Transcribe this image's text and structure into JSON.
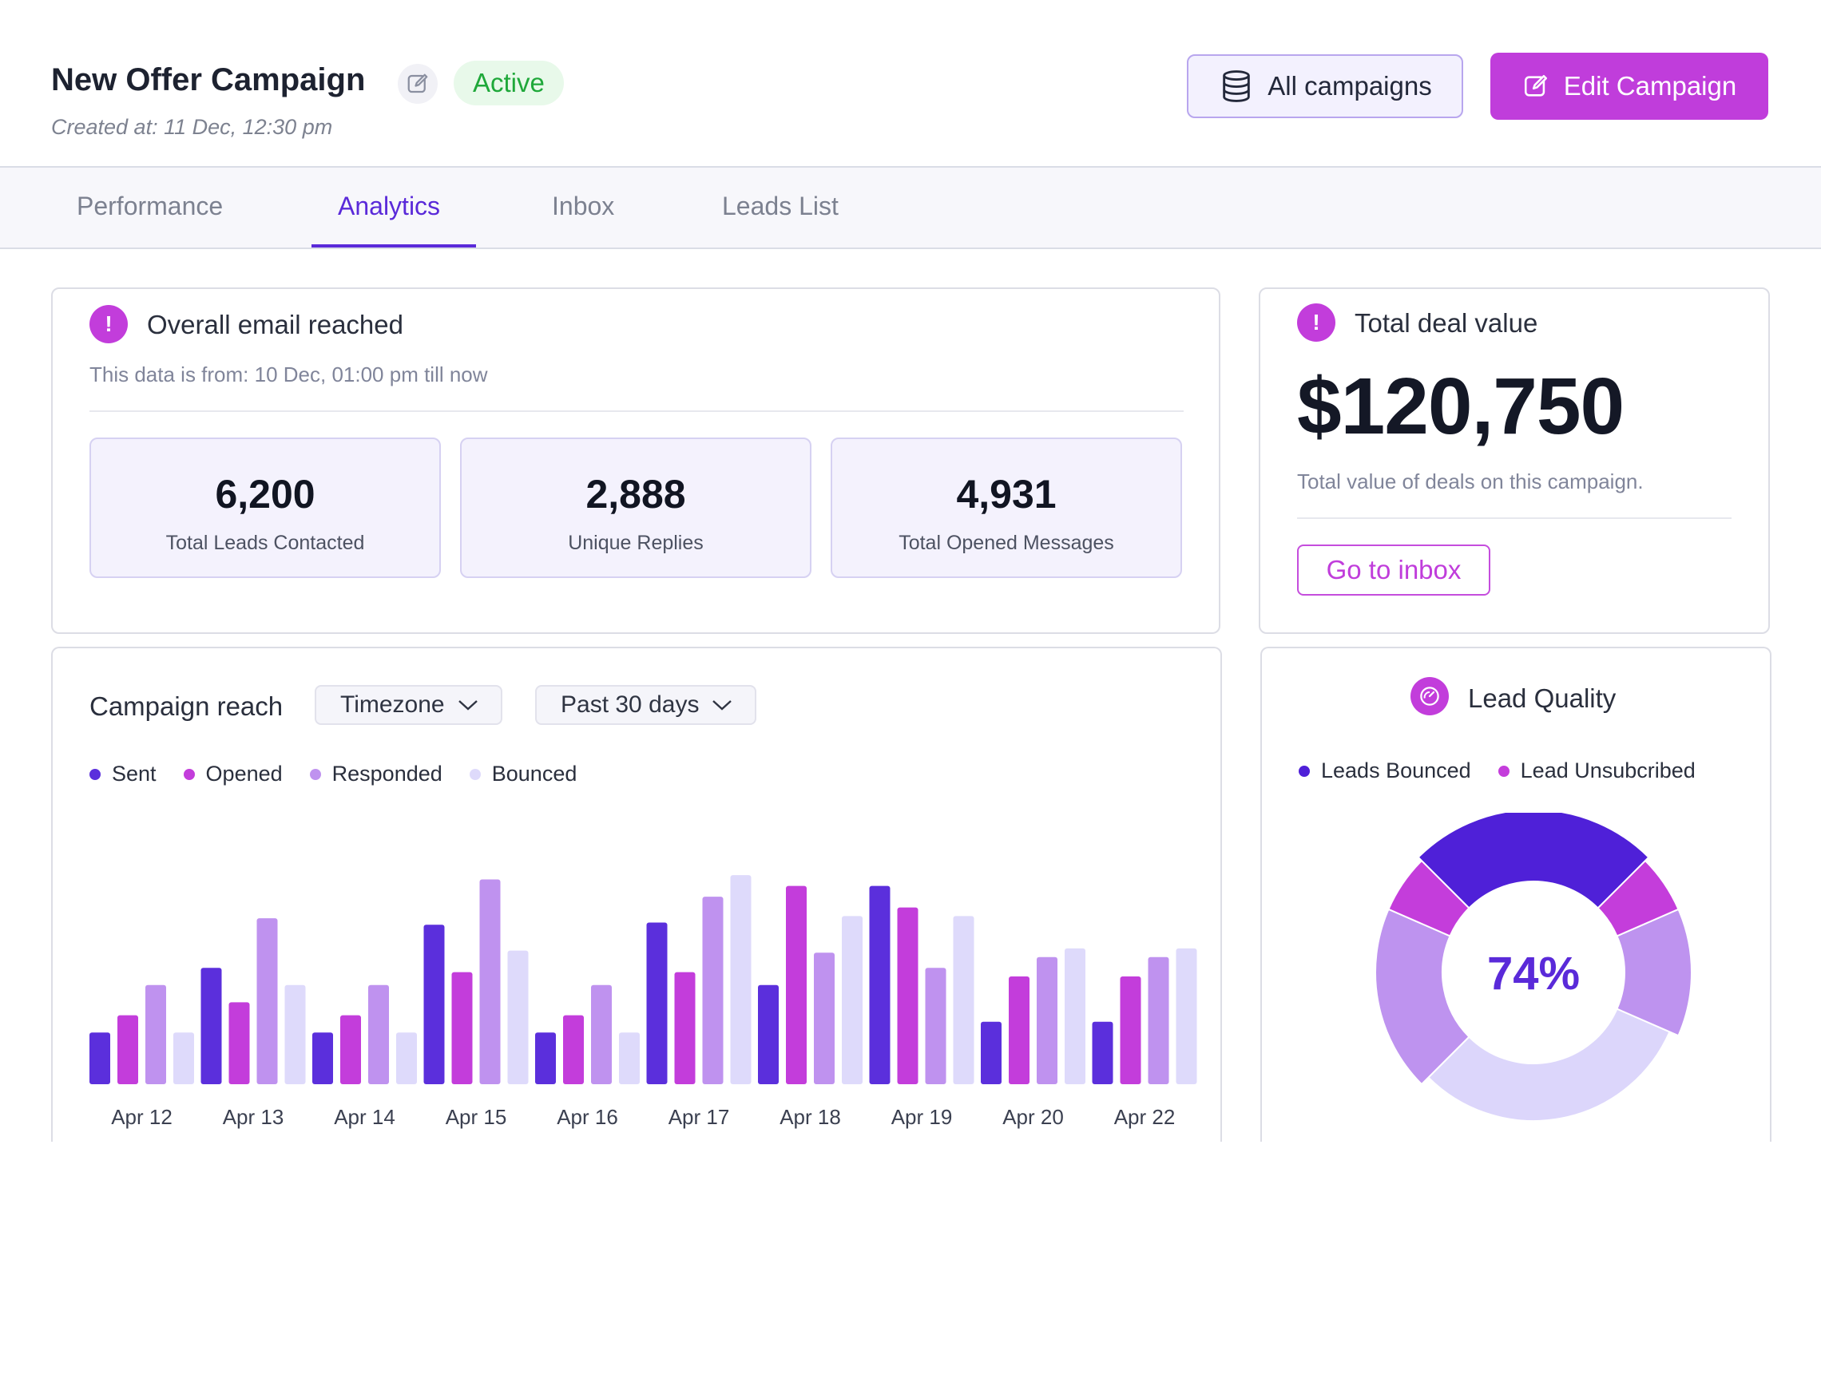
{
  "header": {
    "title": "New Offer Campaign",
    "status": "Active",
    "created": "Created at: 11 Dec, 12:30 pm",
    "all_campaigns_label": "All campaigns",
    "edit_campaign_label": "Edit Campaign"
  },
  "tabs": [
    {
      "label": "Performance",
      "active": false
    },
    {
      "label": "Analytics",
      "active": true
    },
    {
      "label": "Inbox",
      "active": false
    },
    {
      "label": "Leads List",
      "active": false
    }
  ],
  "email_reached": {
    "title": "Overall email reached",
    "subtitle": "This data is from: 10 Dec, 01:00 pm till now",
    "stats": [
      {
        "value": "6,200",
        "label": "Total Leads Contacted"
      },
      {
        "value": "2,888",
        "label": "Unique Replies"
      },
      {
        "value": "4,931",
        "label": "Total Opened Messages"
      }
    ]
  },
  "deal": {
    "title": "Total deal value",
    "value": "$120,750",
    "subtitle": "Total value of deals on this campaign.",
    "button_label": "Go to inbox"
  },
  "campaign_reach": {
    "title": "Campaign reach",
    "timezone_label": "Timezone",
    "range_label": "Past 30 days"
  },
  "lead_quality": {
    "title": "Lead Quality",
    "legend": [
      "Leads Bounced",
      "Lead Unsubcribed"
    ],
    "percent_label": "74%"
  },
  "colors": {
    "accent": "#c03ddb",
    "primary": "#5a2ad9",
    "sent": "#5b2fdc",
    "opened": "#c33ddb",
    "responded": "#bf92ef",
    "bounced": "#dedafb",
    "status_green": "#1fa83a"
  },
  "icons": [
    "pencil-icon",
    "database-icon",
    "edit-icon",
    "alert-icon",
    "chevron-down-icon",
    "speedometer-icon"
  ],
  "chart_data": [
    {
      "type": "bar",
      "title": "Campaign reach",
      "categories": [
        "Apr 12",
        "Apr 13",
        "Apr 14",
        "Apr 15",
        "Apr 16",
        "Apr 17",
        "Apr 18",
        "Apr 19",
        "Apr 20",
        "Apr 22"
      ],
      "series": [
        {
          "name": "Sent",
          "color": "#5b2fdc",
          "values": [
            24,
            54,
            24,
            74,
            24,
            75,
            46,
            92,
            29,
            29
          ]
        },
        {
          "name": "Opened",
          "color": "#c33ddb",
          "values": [
            32,
            38,
            32,
            52,
            32,
            52,
            92,
            82,
            50,
            50
          ]
        },
        {
          "name": "Responded",
          "color": "#bf92ef",
          "values": [
            46,
            77,
            46,
            95,
            46,
            87,
            61,
            54,
            59,
            59
          ]
        },
        {
          "name": "Bounced",
          "color": "#dedafb",
          "values": [
            24,
            46,
            24,
            62,
            24,
            97,
            78,
            78,
            63,
            63
          ]
        }
      ],
      "ylim": [
        0,
        100
      ],
      "grid": false,
      "legend": "top-left"
    },
    {
      "type": "pie",
      "title": "Lead Quality",
      "center_label": "74%",
      "slices": [
        {
          "name": "Leads Bounced",
          "value": 21,
          "color": "#4f20d8"
        },
        {
          "name": "Lead Unsubcribed",
          "value": 5,
          "color": "#c43ddb"
        },
        {
          "name": "",
          "value": 11,
          "color": "#be93ef"
        },
        {
          "name": "",
          "value": 26,
          "color": "#dcd6fb"
        },
        {
          "name": "",
          "value": 16,
          "color": "#be93ef"
        },
        {
          "name": "",
          "value": 5,
          "color": "#c43ddb"
        }
      ]
    }
  ]
}
